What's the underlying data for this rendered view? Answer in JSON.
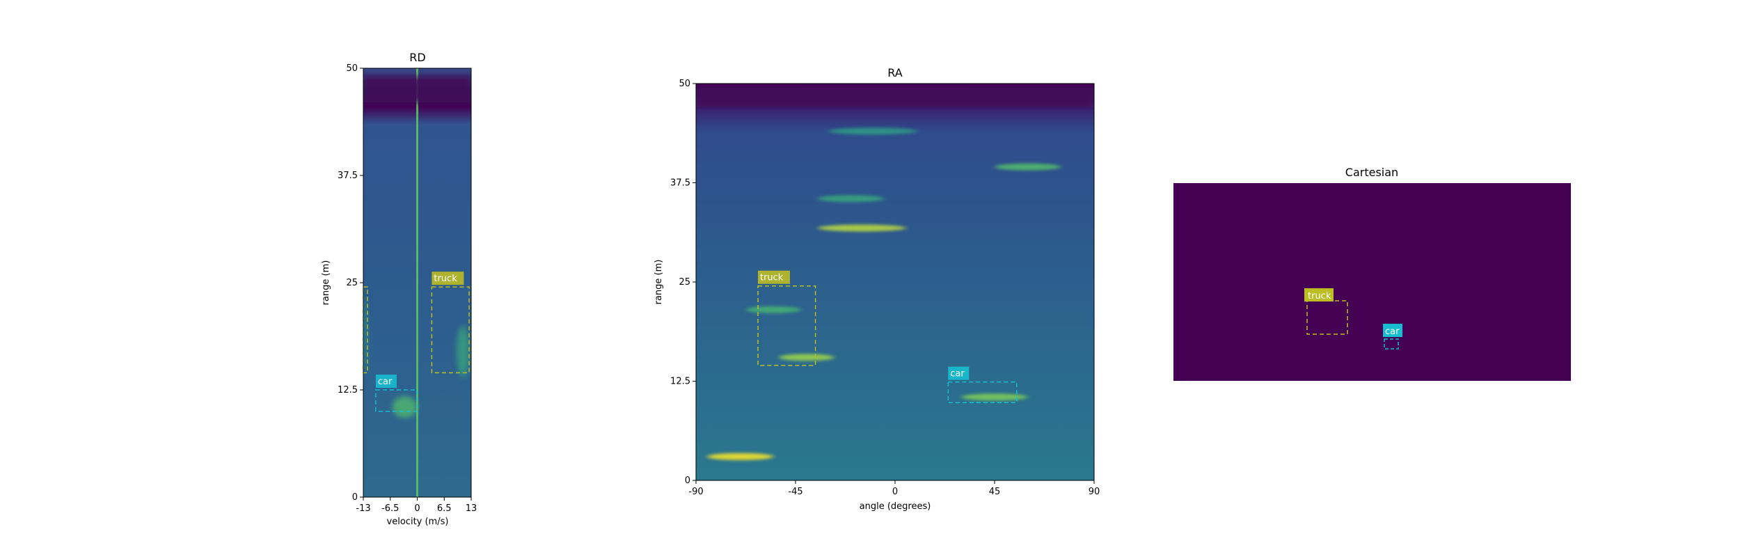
{
  "chart_data": [
    {
      "type": "heatmap",
      "title": "RD",
      "xlabel": "velocity (m/s)",
      "ylabel": "range (m)",
      "xlim": [
        -13,
        13
      ],
      "ylim": [
        0,
        50
      ],
      "xticks": [
        "-13",
        "-6.5",
        "0",
        "6.5",
        "13"
      ],
      "xtick_values": [
        -13,
        -6.5,
        0,
        6.5,
        13
      ],
      "yticks": [
        "0",
        "12.5",
        "25",
        "37.5",
        "50"
      ],
      "ytick_values": [
        0,
        12.5,
        25,
        37.5,
        50
      ],
      "colormap": "viridis",
      "features": [
        {
          "kind": "vertical-line",
          "x": 0,
          "intensity": 0.75
        },
        {
          "kind": "band",
          "y": [
            46,
            49
          ],
          "intensity": 0.02
        },
        {
          "kind": "blob",
          "x": -3,
          "y": 10.5,
          "w": 6,
          "h": 2.5,
          "intensity": 0.7
        },
        {
          "kind": "blob",
          "x": 11,
          "y": 17,
          "w": 3,
          "h": 6,
          "intensity": 0.6
        },
        {
          "kind": "blob",
          "x": -12.5,
          "y": 19,
          "w": 1,
          "h": 9,
          "intensity": 0.5
        }
      ],
      "detections": [
        {
          "label": "truck",
          "x": [
            3.5,
            12.5
          ],
          "y": [
            14.5,
            24.5
          ],
          "color": "#bcbd22"
        },
        {
          "label": "car",
          "x": [
            -10,
            0
          ],
          "y": [
            10,
            12.5
          ],
          "color": "#17becf"
        },
        {
          "label": "",
          "x": [
            -13,
            -12
          ],
          "y": [
            14.5,
            24.5
          ],
          "color": "#bcbd22"
        }
      ]
    },
    {
      "type": "heatmap",
      "title": "RA",
      "xlabel": "angle (degrees)",
      "ylabel": "range (m)",
      "xlim": [
        -90,
        90
      ],
      "ylim": [
        0,
        50
      ],
      "xticks": [
        "-90",
        "-45",
        "0",
        "45",
        "90"
      ],
      "xtick_values": [
        -90,
        -45,
        0,
        45,
        90
      ],
      "yticks": [
        "0",
        "12.5",
        "25",
        "37.5",
        "50"
      ],
      "ytick_values": [
        0,
        12.5,
        25,
        37.5,
        50
      ],
      "colormap": "viridis",
      "features": [
        {
          "kind": "streak",
          "x": -70,
          "y": 3,
          "w": 30,
          "intensity": 1.0
        },
        {
          "kind": "streak",
          "x": -40,
          "y": 15.5,
          "w": 25,
          "intensity": 0.85
        },
        {
          "kind": "streak",
          "x": -55,
          "y": 21.5,
          "w": 25,
          "intensity": 0.65
        },
        {
          "kind": "streak",
          "x": -15,
          "y": 31.8,
          "w": 40,
          "intensity": 0.9
        },
        {
          "kind": "streak",
          "x": 45,
          "y": 10.5,
          "w": 30,
          "intensity": 0.8
        },
        {
          "kind": "streak",
          "x": 60,
          "y": 39.5,
          "w": 30,
          "intensity": 0.7
        },
        {
          "kind": "streak",
          "x": -20,
          "y": 35.5,
          "w": 30,
          "intensity": 0.6
        },
        {
          "kind": "streak",
          "x": -10,
          "y": 44,
          "w": 40,
          "intensity": 0.55
        },
        {
          "kind": "band",
          "y": [
            47,
            49.5
          ],
          "intensity": 0.02
        }
      ],
      "detections": [
        {
          "label": "truck",
          "x": [
            -62,
            -36
          ],
          "y": [
            14.5,
            24.5
          ],
          "color": "#bcbd22"
        },
        {
          "label": "car",
          "x": [
            24,
            55
          ],
          "y": [
            9.8,
            12.4
          ],
          "color": "#17becf"
        }
      ]
    },
    {
      "type": "heatmap",
      "title": "Cartesian",
      "background": "#440154",
      "detections": [
        {
          "label": "truck",
          "color": "#bcbd22"
        },
        {
          "label": "car",
          "color": "#17becf"
        }
      ]
    }
  ]
}
